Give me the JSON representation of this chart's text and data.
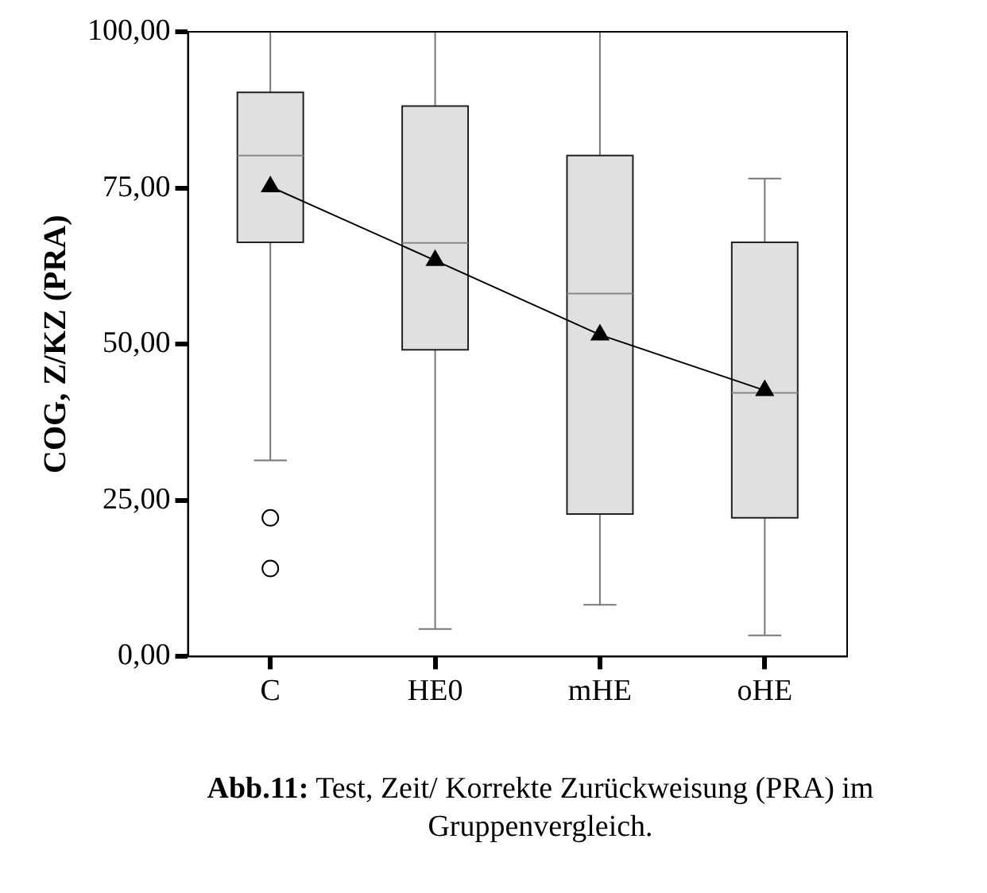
{
  "chart_data": {
    "type": "box",
    "ylabel": "COG, Z/KZ (PRA)",
    "categories": [
      "C",
      "HE0",
      "mHE",
      "oHE"
    ],
    "series": [
      {
        "color": "#e0e0e0",
        "boxes": [
          {
            "low": 31.4,
            "q1": 66.3,
            "median": 80.2,
            "q3": 90.3,
            "high": 100,
            "outliers": [
              22.2,
              14.1
            ]
          },
          {
            "low": 4.4,
            "q1": 49.1,
            "median": 66.2,
            "q3": 88.1,
            "high": 100
          },
          {
            "low": 8.3,
            "q1": 22.8,
            "median": 58.1,
            "q3": 80.2,
            "high": 100
          },
          {
            "low": 3.4,
            "q1": 22.2,
            "median": 42.2,
            "q3": 66.3,
            "high": 76.5
          }
        ]
      },
      {
        "type": "line",
        "color": "#000000",
        "marker": "triangle",
        "values": [
          75.2,
          63.4,
          51.5,
          42.6
        ]
      }
    ],
    "ylim": [
      0,
      100
    ],
    "yticks": [
      {
        "value": 0,
        "label": "0,00"
      },
      {
        "value": 25,
        "label": "25,00"
      },
      {
        "value": 50,
        "label": "50,00"
      },
      {
        "value": 75,
        "label": "75,00"
      },
      {
        "value": 100,
        "label": "100,00"
      }
    ],
    "grid": false,
    "legend": false,
    "annotations": [
      "Abb.11: Test, Zeit/ Korrekte Zurückweisung (PRA) im Gruppenvergleich."
    ]
  }
}
